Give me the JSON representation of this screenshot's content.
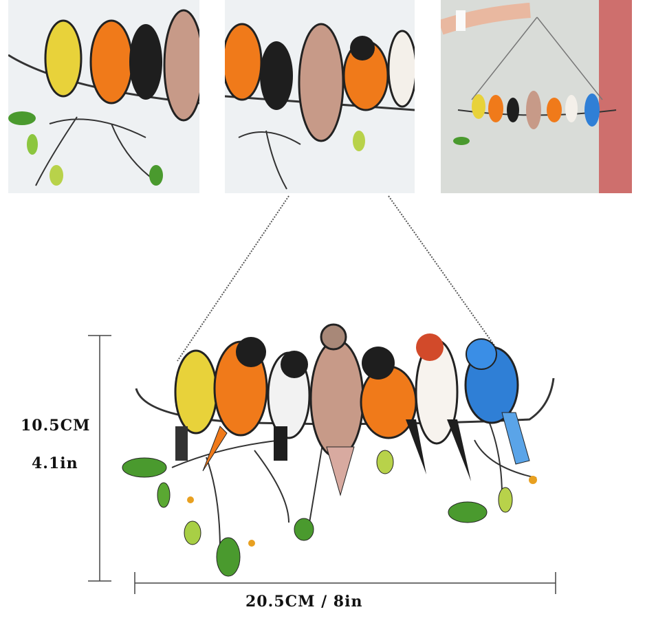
{
  "dimensions": {
    "height_cm": "10.5CM",
    "height_in": "4.1in",
    "width": "20.5CM / 8in"
  },
  "colors": {
    "yellow_bird": "#e8d23a",
    "orange_bird": "#f07a1a",
    "black": "#1e1e1e",
    "dove": "#c79a88",
    "blue_jay": "#2f7fd6",
    "leaf": "#4a9a2e",
    "branch": "#333333"
  }
}
